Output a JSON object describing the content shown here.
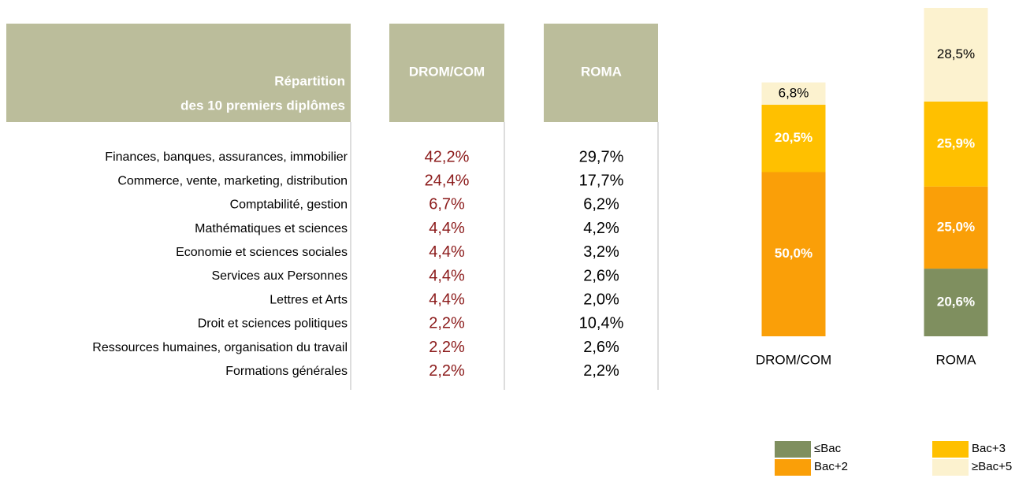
{
  "table": {
    "header": [
      "Répartition",
      "des 10 premiers diplômes",
      "DROM/COM",
      "ROMA"
    ],
    "rows": [
      [
        "Finances, banques, assurances, immobilier",
        "42,2%",
        "29,7%"
      ],
      [
        "Commerce, vente, marketing, distribution",
        "24,4%",
        "17,7%"
      ],
      [
        "Comptabilité, gestion",
        "6,7%",
        "6,2%"
      ],
      [
        "Mathématiques et sciences",
        "4,4%",
        "4,2%"
      ],
      [
        "Economie et sciences sociales",
        "4,4%",
        "3,2%"
      ],
      [
        "Services aux Personnes",
        "4,4%",
        "2,6%"
      ],
      [
        "Lettres et Arts",
        "4,4%",
        "2,0%"
      ],
      [
        "Droit et sciences politiques",
        "2,2%",
        "10,4%"
      ],
      [
        "Ressources humaines, organisation du travail",
        "2,2%",
        "2,6%"
      ],
      [
        "Formations générales",
        "2,2%",
        "2,2%"
      ]
    ]
  },
  "chart_data": {
    "type": "stacked_bar",
    "categories": [
      "DROM/COM",
      "ROMA"
    ],
    "ylim": [
      0,
      100
    ],
    "series": [
      {
        "name": "≤Bac",
        "color": "#7f8f5f",
        "values": [
          null,
          20.6
        ],
        "value_labels": [
          null,
          "20,6%"
        ]
      },
      {
        "name": "Bac+2",
        "color": "#fa9f08",
        "values": [
          50.0,
          25.0
        ],
        "value_labels": [
          "50,0%",
          "25,0%"
        ]
      },
      {
        "name": "Bac+3",
        "color": "#ffc000",
        "values": [
          20.5,
          25.9
        ],
        "value_labels": [
          "20,5%",
          "25,9%"
        ]
      },
      {
        "name": "≥Bac+5",
        "color": "#fcf2cf",
        "values": [
          6.8,
          28.5
        ],
        "value_labels": [
          "6,8%",
          "28,5%"
        ]
      }
    ]
  }
}
